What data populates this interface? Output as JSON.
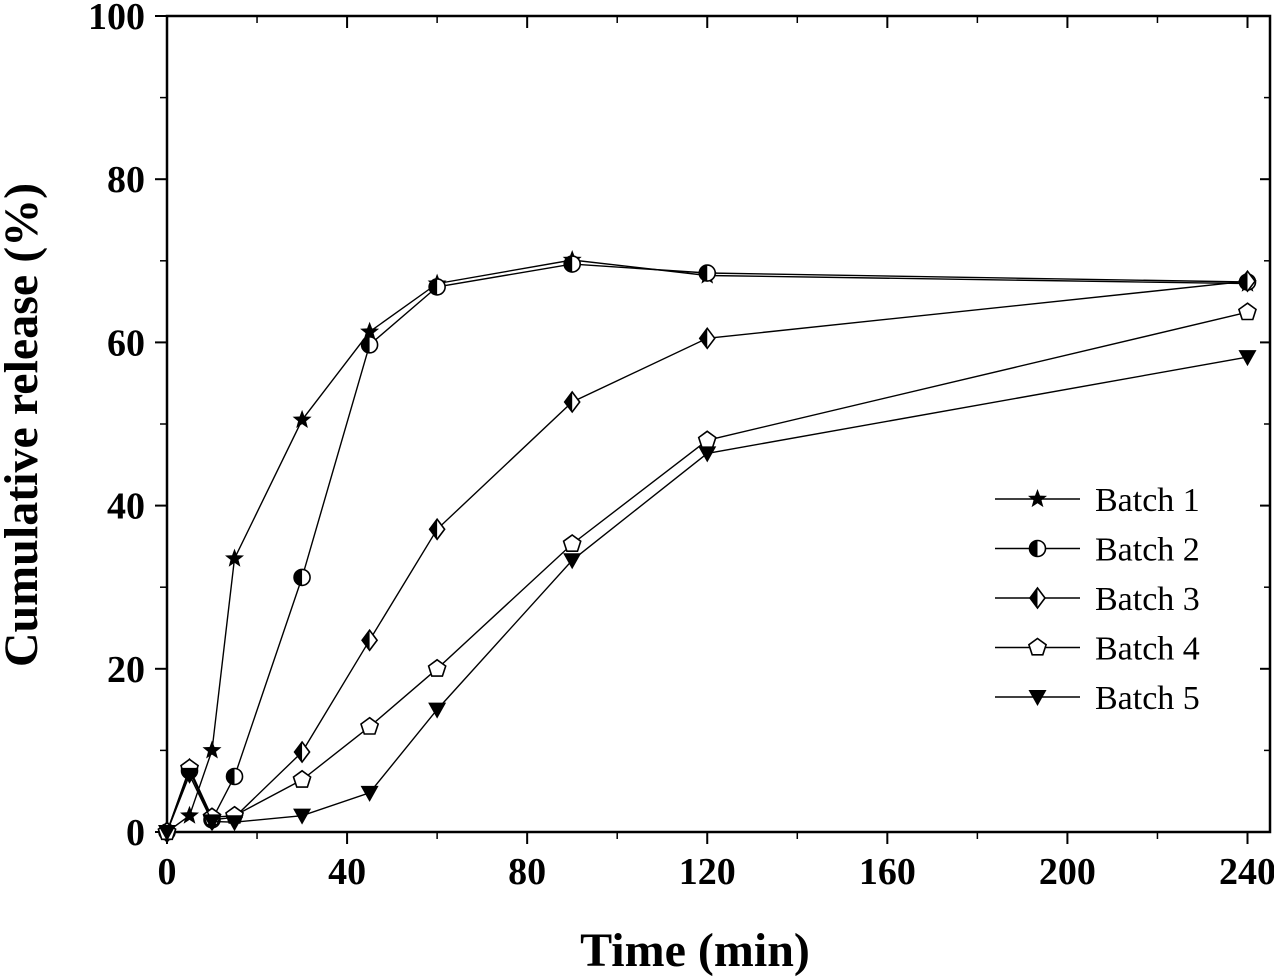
{
  "chart_data": {
    "type": "line",
    "xlabel": "Time (min)",
    "ylabel": "Cumulative release (%)",
    "xlim": [
      0,
      245
    ],
    "ylim": [
      0,
      100
    ],
    "xticks": [
      0,
      40,
      80,
      120,
      160,
      200,
      240
    ],
    "yticks": [
      0,
      20,
      40,
      60,
      80,
      100
    ],
    "grid": false,
    "legend_position": "right-center",
    "series": [
      {
        "name": "Batch 1",
        "marker": "star",
        "x": [
          0,
          5,
          10,
          15,
          30,
          45,
          60,
          90,
          120,
          240
        ],
        "y": [
          0,
          2,
          10,
          33.5,
          50.5,
          61.3,
          67.2,
          70.1,
          68.2,
          67.2
        ]
      },
      {
        "name": "Batch 2",
        "marker": "half-circle",
        "x": [
          0,
          5,
          10,
          15,
          30,
          45,
          60,
          90,
          120,
          240
        ],
        "y": [
          0,
          7.5,
          1.5,
          6.8,
          31.2,
          59.7,
          66.8,
          69.6,
          68.5,
          67.4
        ]
      },
      {
        "name": "Batch 3",
        "marker": "half-diamond",
        "x": [
          0,
          5,
          10,
          15,
          30,
          45,
          60,
          90,
          120,
          240
        ],
        "y": [
          0,
          7.7,
          1.5,
          1.8,
          9.8,
          23.5,
          37.1,
          52.7,
          60.5,
          67.5
        ]
      },
      {
        "name": "Batch 4",
        "marker": "pentagon",
        "x": [
          0,
          5,
          10,
          15,
          30,
          45,
          60,
          90,
          120,
          240
        ],
        "y": [
          0,
          7.8,
          1.8,
          2.0,
          6.4,
          12.9,
          20.0,
          35.3,
          48.0,
          63.7
        ]
      },
      {
        "name": "Batch 5",
        "marker": "triangle-down",
        "x": [
          0,
          5,
          10,
          15,
          30,
          45,
          60,
          90,
          120,
          240
        ],
        "y": [
          0,
          7.0,
          1.3,
          1.2,
          2.0,
          4.8,
          15.0,
          33.3,
          46.4,
          58.2
        ]
      }
    ]
  }
}
